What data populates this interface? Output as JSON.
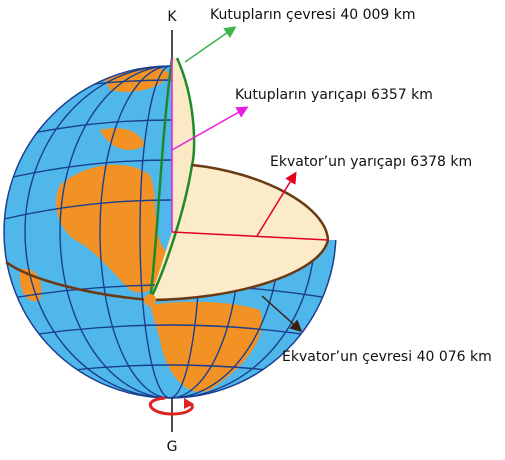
{
  "poles": {
    "north": "K",
    "south": "G"
  },
  "labels": {
    "polar_circumference": "Kutupların çevresi 40 009 km",
    "polar_radius": "Kutupların yarıçapı 6357 km",
    "equatorial_radius": "Ekvator’un yarıçapı 6378 km",
    "equatorial_circumference": "Ekvator’un çevresi 40 076 km"
  }
}
